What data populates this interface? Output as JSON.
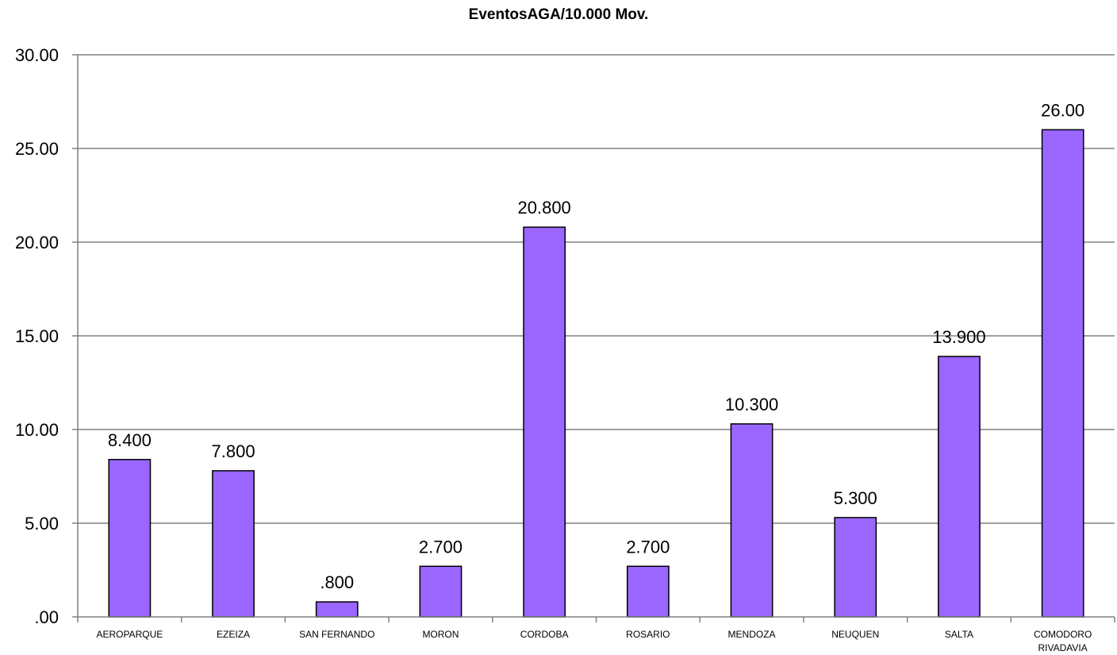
{
  "chart_data": {
    "type": "bar",
    "title": "EventosAGA/10.000 Mov.",
    "xlabel": "",
    "ylabel": "",
    "categories": [
      "AEROPARQUE",
      "EZEIZA",
      "SAN FERNANDO",
      "MORON",
      "CORDOBA",
      "ROSARIO",
      "MENDOZA",
      "NEUQUEN",
      "SALTA",
      "COMODORO RIVADAVIA"
    ],
    "category_lines": [
      [
        "AEROPARQUE"
      ],
      [
        "EZEIZA"
      ],
      [
        "SAN FERNANDO"
      ],
      [
        "MORON"
      ],
      [
        "CORDOBA"
      ],
      [
        "ROSARIO"
      ],
      [
        "MENDOZA"
      ],
      [
        "NEUQUEN"
      ],
      [
        "SALTA"
      ],
      [
        "COMODORO",
        "RIVADAVIA"
      ]
    ],
    "values": [
      8.4,
      7.8,
      0.8,
      2.7,
      20.8,
      2.7,
      10.3,
      5.3,
      13.9,
      26.0
    ],
    "data_labels": [
      "8.400",
      "7.800",
      ".800",
      "2.700",
      "20.800",
      "2.700",
      "10.300",
      "5.300",
      "13.900",
      "26.00"
    ],
    "ylim": [
      0,
      30
    ],
    "yticks": [
      0,
      5,
      10,
      15,
      20,
      25,
      30
    ],
    "ytick_labels": [
      ".00",
      "5.00",
      "10.00",
      "15.00",
      "20.00",
      "25.00",
      "30.00"
    ],
    "grid": true,
    "legend": "none",
    "bar_color": "#9966ff",
    "bar_edge_color": "#000000",
    "grid_color": "#808080"
  }
}
